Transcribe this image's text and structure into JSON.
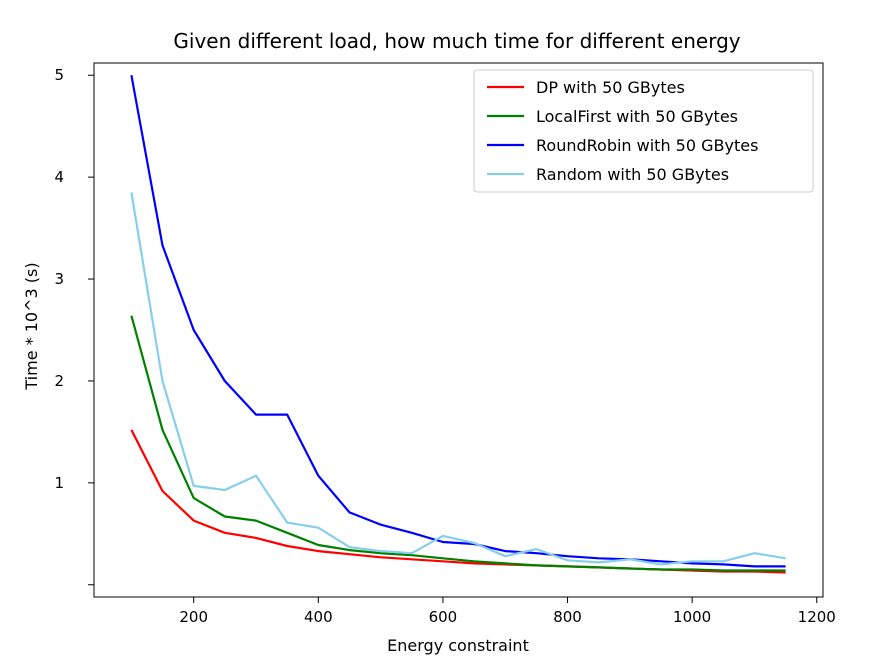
{
  "chart_data": {
    "type": "line",
    "title": "Given different load, how much time for different energy",
    "xlabel": "Energy constraint",
    "ylabel": "Time * 10^3 (s)",
    "xlim": [
      40,
      1210
    ],
    "ylim": [
      -0.12,
      5.12
    ],
    "xticks": [
      200,
      400,
      600,
      800,
      1000,
      1200
    ],
    "yticks": [
      1,
      2,
      3,
      4,
      5
    ],
    "legend_position": "top-right",
    "x": [
      100,
      150,
      200,
      250,
      300,
      350,
      400,
      450,
      500,
      550,
      600,
      650,
      700,
      750,
      800,
      850,
      900,
      950,
      1000,
      1050,
      1100,
      1150
    ],
    "series": [
      {
        "name": "DP with 50 GBytes",
        "color": "#ff0000",
        "values": [
          1.52,
          0.92,
          0.63,
          0.51,
          0.46,
          0.38,
          0.33,
          0.3,
          0.27,
          0.25,
          0.23,
          0.21,
          0.2,
          0.19,
          0.18,
          0.17,
          0.16,
          0.15,
          0.14,
          0.13,
          0.13,
          0.12
        ]
      },
      {
        "name": "LocalFirst with 50 GBytes",
        "color": "#008000",
        "values": [
          2.64,
          1.52,
          0.85,
          0.67,
          0.63,
          0.51,
          0.39,
          0.34,
          0.31,
          0.29,
          0.26,
          0.23,
          0.21,
          0.19,
          0.18,
          0.17,
          0.16,
          0.15,
          0.15,
          0.14,
          0.14,
          0.14
        ]
      },
      {
        "name": "RoundRobin with 50 GBytes",
        "color": "#0000ff",
        "values": [
          5.0,
          3.33,
          2.5,
          2.0,
          1.67,
          1.67,
          1.07,
          0.71,
          0.59,
          0.51,
          0.42,
          0.4,
          0.33,
          0.31,
          0.28,
          0.26,
          0.25,
          0.23,
          0.21,
          0.2,
          0.18,
          0.18
        ]
      },
      {
        "name": "Random with 50 GBytes",
        "color": "#87ceeb",
        "values": [
          3.85,
          2.0,
          0.97,
          0.93,
          1.07,
          0.61,
          0.56,
          0.37,
          0.33,
          0.31,
          0.48,
          0.41,
          0.28,
          0.35,
          0.24,
          0.22,
          0.25,
          0.2,
          0.23,
          0.23,
          0.31,
          0.26
        ]
      }
    ]
  }
}
